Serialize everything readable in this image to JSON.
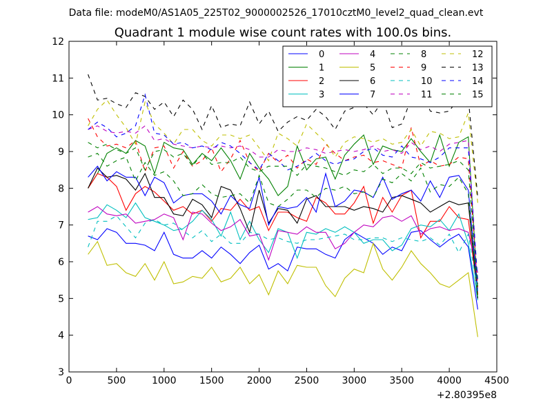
{
  "figure": {
    "suptitle": "Data file: modeM0/AS1A05_225T02_9000002526_17010cztM0_level2_quad_clean.evt"
  },
  "chart_data": {
    "type": "line",
    "title": "Quadrant 1 module wise count rates with 100.0s bins.",
    "xlabel": "",
    "ylabel": "",
    "x_offset_label": "+2.80395e8",
    "xlim": [
      0,
      4500
    ],
    "ylim": [
      3,
      12
    ],
    "xticks": [
      0,
      500,
      1000,
      1500,
      2000,
      2500,
      3000,
      3500,
      4000,
      4500
    ],
    "yticks": [
      3,
      4,
      5,
      6,
      7,
      8,
      9,
      10,
      11,
      12
    ],
    "legend_position": "top-right",
    "legend_columns": 4,
    "x": [
      200,
      300,
      400,
      500,
      600,
      700,
      800,
      900,
      1000,
      1100,
      1200,
      1300,
      1400,
      1500,
      1600,
      1700,
      1800,
      1900,
      2000,
      2100,
      2200,
      2300,
      2400,
      2500,
      2600,
      2700,
      2800,
      2900,
      3000,
      3100,
      3200,
      3300,
      3400,
      3500,
      3600,
      3700,
      3800,
      3900,
      4000,
      4100,
      4200,
      4300
    ],
    "series": [
      {
        "name": "0",
        "color": "#0000ff",
        "dash": "solid",
        "values": [
          6.7,
          6.6,
          6.9,
          6.8,
          6.5,
          6.5,
          6.45,
          6.3,
          6.8,
          6.2,
          6.1,
          6.1,
          6.3,
          6.1,
          6.4,
          6.2,
          5.95,
          6.25,
          6.45,
          5.8,
          5.95,
          5.75,
          6.4,
          6.35,
          6.35,
          6.2,
          6.1,
          6.6,
          6.8,
          6.65,
          6.5,
          6.2,
          6.4,
          6.3,
          6.8,
          6.85,
          6.6,
          6.4,
          6.6,
          6.75,
          6.4,
          4.7
        ]
      },
      {
        "name": "1",
        "color": "#008000",
        "dash": "solid",
        "values": [
          8.0,
          8.4,
          8.95,
          9.1,
          8.95,
          9.3,
          9.15,
          8.4,
          9.25,
          9.1,
          9.05,
          8.65,
          8.95,
          8.75,
          9.1,
          8.75,
          8.25,
          8.95,
          8.55,
          8.25,
          7.8,
          8.05,
          9.15,
          8.5,
          8.8,
          8.85,
          8.25,
          8.9,
          9.2,
          9.45,
          8.65,
          9.15,
          9.05,
          9.0,
          9.35,
          9.0,
          8.7,
          9.45,
          8.6,
          9.25,
          9.4,
          5.1
        ]
      },
      {
        "name": "2",
        "color": "#ff0000",
        "dash": "solid",
        "values": [
          8.0,
          8.4,
          8.3,
          8.05,
          7.4,
          7.85,
          8.05,
          7.9,
          7.65,
          7.4,
          7.5,
          7.3,
          7.4,
          7.1,
          7.45,
          7.4,
          7.7,
          7.4,
          7.5,
          6.85,
          7.35,
          7.35,
          7.2,
          7.1,
          7.75,
          7.6,
          7.3,
          7.3,
          7.6,
          8.05,
          7.05,
          7.75,
          7.35,
          7.8,
          7.95,
          6.65,
          7.1,
          7.1,
          7.5,
          7.2,
          7.15,
          5.1
        ]
      },
      {
        "name": "3",
        "color": "#00bfbf",
        "dash": "solid",
        "values": [
          7.15,
          7.2,
          7.55,
          7.4,
          7.2,
          7.6,
          7.2,
          7.1,
          7.0,
          6.85,
          6.9,
          7.1,
          7.4,
          7.15,
          6.7,
          7.35,
          6.6,
          7.1,
          6.6,
          6.25,
          6.9,
          6.8,
          6.1,
          6.8,
          6.75,
          6.9,
          6.8,
          6.95,
          6.8,
          6.5,
          6.6,
          6.6,
          6.3,
          6.45,
          6.9,
          7.0,
          6.95,
          7.15,
          6.85,
          7.3,
          6.5,
          4.95
        ]
      },
      {
        "name": "4",
        "color": "#bf00bf",
        "dash": "solid",
        "values": [
          7.35,
          7.5,
          7.3,
          7.25,
          7.3,
          7.05,
          7.1,
          7.15,
          7.3,
          7.2,
          6.6,
          7.35,
          7.3,
          7.05,
          6.85,
          6.95,
          7.15,
          6.7,
          6.75,
          6.05,
          6.85,
          6.8,
          6.75,
          6.95,
          6.8,
          6.8,
          6.35,
          6.5,
          6.8,
          7.0,
          6.95,
          7.2,
          7.25,
          7.1,
          7.25,
          6.75,
          6.9,
          6.95,
          6.85,
          6.9,
          6.8,
          5.7
        ]
      },
      {
        "name": "5",
        "color": "#bfbf00",
        "dash": "solid",
        "values": [
          6.2,
          6.55,
          5.9,
          5.95,
          5.7,
          5.6,
          5.95,
          5.5,
          6.0,
          5.4,
          5.45,
          5.6,
          5.55,
          5.85,
          5.45,
          5.55,
          5.85,
          5.4,
          5.65,
          5.1,
          5.75,
          5.4,
          5.9,
          5.85,
          5.85,
          5.35,
          5.05,
          5.55,
          5.8,
          5.7,
          6.5,
          5.8,
          5.5,
          5.85,
          6.3,
          5.95,
          5.7,
          5.4,
          5.3,
          5.5,
          5.7,
          3.95
        ]
      },
      {
        "name": "6",
        "color": "#000000",
        "dash": "solid",
        "values": [
          8.0,
          8.55,
          8.3,
          8.35,
          8.25,
          7.95,
          8.4,
          7.75,
          7.75,
          7.3,
          7.25,
          7.7,
          7.55,
          7.2,
          8.05,
          7.95,
          7.45,
          6.8,
          7.95,
          7.05,
          7.45,
          7.4,
          7.05,
          7.7,
          7.8,
          7.5,
          7.5,
          7.5,
          7.4,
          7.5,
          7.45,
          7.35,
          7.75,
          7.8,
          7.7,
          7.6,
          7.35,
          7.5,
          7.65,
          7.55,
          7.6,
          5.0
        ]
      },
      {
        "name": "7",
        "color": "#0000ff",
        "dash": "solid",
        "values": [
          8.3,
          8.6,
          8.2,
          8.45,
          8.3,
          8.3,
          7.8,
          8.3,
          8.15,
          7.6,
          7.8,
          7.85,
          7.85,
          7.65,
          7.3,
          7.8,
          7.55,
          7.45,
          8.3,
          7.0,
          7.5,
          7.45,
          7.5,
          7.75,
          7.35,
          8.4,
          7.5,
          7.65,
          7.95,
          7.9,
          7.75,
          8.3,
          7.7,
          7.85,
          7.95,
          7.65,
          8.2,
          7.75,
          8.3,
          8.35,
          7.95,
          5.2
        ]
      },
      {
        "name": "8",
        "color": "#008000",
        "dash": "dashed",
        "values": [
          8.85,
          8.95,
          8.6,
          8.75,
          8.85,
          8.2,
          8.7,
          8.35,
          8.45,
          8.2,
          7.8,
          7.85,
          8.1,
          7.85,
          7.75,
          7.8,
          7.85,
          7.6,
          8.35,
          7.6,
          7.5,
          7.7,
          7.95,
          7.95,
          7.75,
          8.0,
          7.95,
          8.05,
          7.85,
          7.9,
          7.75,
          8.25,
          8.15,
          8.4,
          8.2,
          8.55,
          7.9,
          8.1,
          8.05,
          8.3,
          7.85,
          5.0
        ]
      },
      {
        "name": "9",
        "color": "#ff0000",
        "dash": "dashed",
        "values": [
          9.9,
          9.4,
          9.15,
          9.2,
          9.1,
          9.3,
          8.45,
          9.1,
          9.15,
          8.55,
          9.0,
          8.6,
          8.75,
          9.1,
          8.45,
          8.8,
          9.3,
          8.7,
          8.45,
          8.95,
          8.7,
          8.9,
          8.55,
          8.8,
          8.65,
          9.2,
          8.95,
          8.75,
          8.85,
          8.9,
          8.7,
          8.75,
          8.65,
          8.55,
          9.65,
          8.6,
          8.75,
          8.6,
          8.65,
          8.85,
          8.8,
          5.3
        ]
      },
      {
        "name": "10",
        "color": "#00bfbf",
        "dash": "dashed",
        "values": [
          6.4,
          7.1,
          7.1,
          7.25,
          6.95,
          6.65,
          7.05,
          7.15,
          7.0,
          7.05,
          6.85,
          6.65,
          6.85,
          6.55,
          6.75,
          6.5,
          6.5,
          6.8,
          6.75,
          6.6,
          6.65,
          6.55,
          6.5,
          6.6,
          6.6,
          6.65,
          6.7,
          6.75,
          6.6,
          6.6,
          6.65,
          6.65,
          6.55,
          6.65,
          6.6,
          6.55,
          6.65,
          6.45,
          6.75,
          6.25,
          6.75,
          5.2
        ]
      },
      {
        "name": "11",
        "color": "#bf00bf",
        "dash": "dashed",
        "values": [
          9.6,
          9.7,
          9.55,
          9.5,
          9.55,
          9.5,
          9.7,
          9.3,
          9.35,
          9.2,
          9.15,
          9.1,
          9.15,
          9.1,
          9.15,
          9.1,
          9.15,
          9.05,
          8.85,
          8.85,
          9.05,
          9.0,
          9.0,
          9.1,
          9.05,
          8.95,
          9.0,
          9.05,
          9.0,
          9.05,
          9.15,
          9.0,
          9.05,
          8.95,
          9.25,
          9.05,
          9.15,
          9.0,
          9.2,
          9.25,
          9.3,
          5.4
        ]
      },
      {
        "name": "12",
        "color": "#bfbf00",
        "dash": "dashed",
        "values": [
          9.7,
          10.15,
          10.4,
          10.0,
          9.65,
          9.2,
          10.35,
          9.75,
          9.5,
          9.2,
          9.6,
          9.6,
          9.3,
          9.15,
          9.45,
          9.45,
          9.35,
          9.45,
          9.1,
          8.75,
          9.5,
          9.35,
          9.15,
          9.75,
          9.5,
          9.25,
          8.85,
          9.25,
          9.4,
          9.35,
          9.25,
          9.35,
          9.2,
          9.25,
          9.6,
          9.15,
          9.55,
          9.5,
          9.35,
          9.4,
          10.05,
          7.6
        ]
      },
      {
        "name": "13",
        "color": "#000000",
        "dash": "dashed",
        "values": [
          11.1,
          10.4,
          10.45,
          10.3,
          10.2,
          10.6,
          10.5,
          10.15,
          10.35,
          9.95,
          10.4,
          10.15,
          9.6,
          10.25,
          9.65,
          9.75,
          9.7,
          10.35,
          9.75,
          10.1,
          9.55,
          9.8,
          9.95,
          9.85,
          10.15,
          9.95,
          9.6,
          10.1,
          10.2,
          10.3,
          10.0,
          10.4,
          9.65,
          9.75,
          10.45,
          10.7,
          10.1,
          10.05,
          10.1,
          10.45,
          10.45,
          7.75
        ]
      },
      {
        "name": "14",
        "color": "#0000ff",
        "dash": "dashed",
        "values": [
          9.6,
          9.8,
          9.65,
          9.4,
          9.5,
          9.7,
          10.55,
          9.5,
          9.45,
          9.2,
          9.25,
          9.1,
          9.15,
          9.05,
          9.25,
          9.15,
          8.95,
          8.7,
          8.5,
          8.95,
          8.75,
          8.5,
          8.6,
          8.75,
          8.95,
          8.75,
          8.65,
          8.75,
          8.8,
          9.0,
          9.1,
          8.9,
          8.85,
          9.15,
          8.85,
          8.8,
          8.7,
          8.85,
          9.1,
          9.1,
          9.1,
          5.5
        ]
      },
      {
        "name": "15",
        "color": "#008000",
        "dash": "dashed",
        "values": [
          9.25,
          9.1,
          9.2,
          9.05,
          8.95,
          9.1,
          8.5,
          9.0,
          9.05,
          8.85,
          8.95,
          8.6,
          8.95,
          8.65,
          8.7,
          8.7,
          8.85,
          8.55,
          8.45,
          8.6,
          8.6,
          8.6,
          8.35,
          8.65,
          8.6,
          8.55,
          8.45,
          8.35,
          8.5,
          8.45,
          8.65,
          8.4,
          8.55,
          8.55,
          8.4,
          8.7,
          8.55,
          8.6,
          8.65,
          8.75,
          8.5,
          5.3
        ]
      }
    ]
  }
}
